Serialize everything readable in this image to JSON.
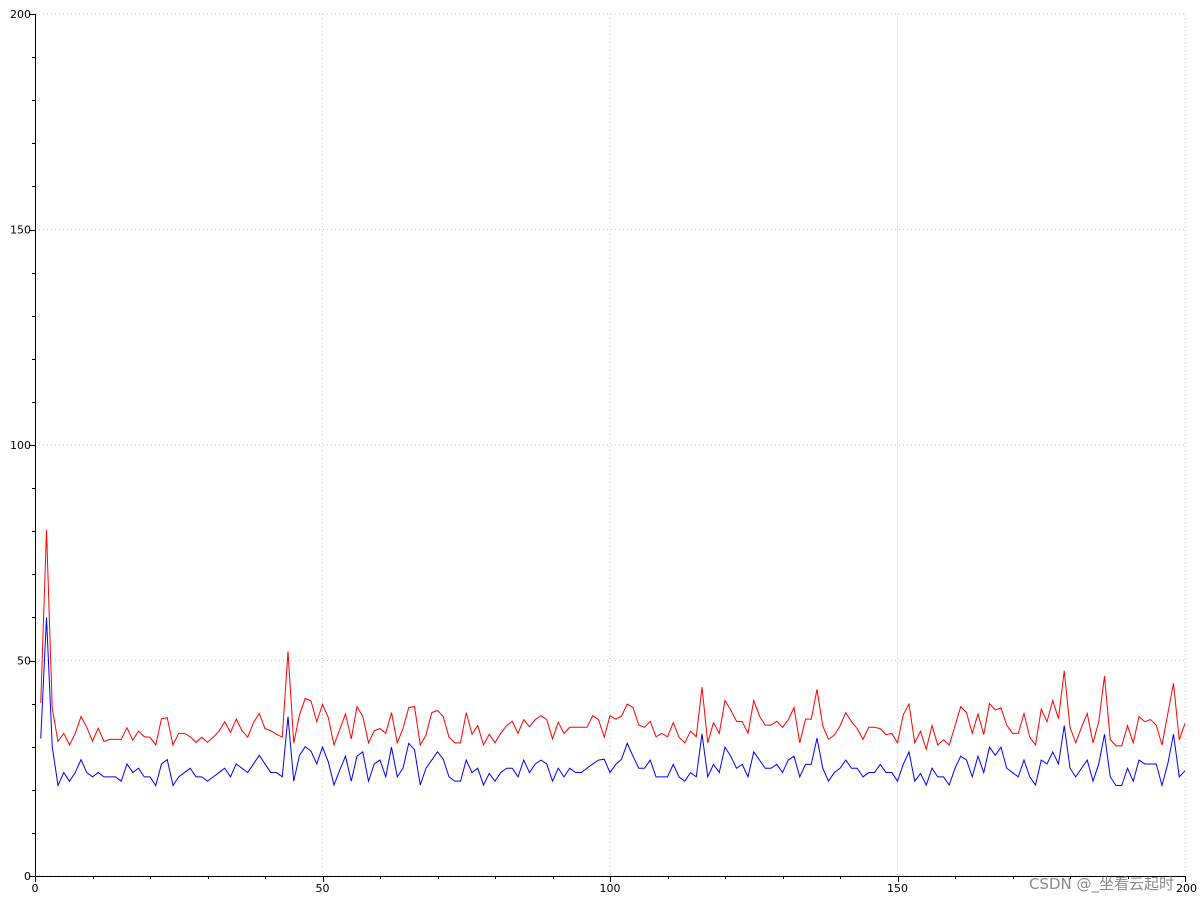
{
  "chart_data": {
    "type": "line",
    "title": "",
    "xlabel": "",
    "ylabel": "",
    "xlim": [
      0,
      200
    ],
    "ylim": [
      0,
      200
    ],
    "x_ticks": [
      "0",
      "50",
      "100",
      "150",
      "200"
    ],
    "y_ticks": [
      "0",
      "50",
      "100",
      "150",
      "200"
    ],
    "grid": true,
    "x": "1..200",
    "series": [
      {
        "color": "#ff0000",
        "values": [
          40.2,
          80.3,
          38.9,
          31.2,
          33.1,
          30.4,
          33.1,
          37,
          34.5,
          31.3,
          34.3,
          31.2,
          31.7,
          31.7,
          31.7,
          34.4,
          31.5,
          33.6,
          32.3,
          32.2,
          30.4,
          36.5,
          36.7,
          30.4,
          33.1,
          33.1,
          32.3,
          31,
          32.2,
          31,
          32.2,
          33.6,
          35.8,
          33.3,
          36.4,
          33.7,
          32.2,
          35.6,
          37.7,
          34.2,
          33.7,
          32.9,
          32.2,
          52.1,
          30.8,
          37.4,
          41.2,
          40.6,
          35.8,
          39.8,
          36.8,
          30.4,
          34,
          37.6,
          31.8,
          39.3,
          37.1,
          30.9,
          33.7,
          34.2,
          33.1,
          37.9,
          30.9,
          34.2,
          39.1,
          39.3,
          30.4,
          32.7,
          37.9,
          38.4,
          37,
          32.2,
          30.9,
          30.9,
          37.9,
          32.9,
          34.9,
          30.4,
          32.9,
          30.9,
          33.1,
          34.9,
          35.9,
          33.1,
          36.3,
          34.6,
          36.3,
          37.2,
          36.3,
          31.8,
          35.7,
          33.1,
          34.5,
          34.5,
          34.5,
          34.5,
          37.2,
          36.3,
          32.2,
          37.2,
          36.4,
          37.1,
          39.9,
          39.1,
          35,
          34.5,
          35.9,
          32.3,
          33.1,
          32.3,
          35.6,
          32.2,
          30.9,
          33.6,
          32.3,
          43.8,
          30.9,
          35.6,
          33.1,
          40.7,
          38.5,
          35.9,
          35.8,
          33.1,
          40.7,
          37.1,
          35,
          35,
          35.9,
          34.5,
          36.2,
          39.1,
          30.9,
          36.4,
          36.4,
          43.3,
          34.8,
          31.7,
          32.7,
          34.8,
          37.9,
          35.8,
          34.2,
          31.7,
          34.5,
          34.5,
          34.2,
          32.8,
          33.1,
          30.9,
          37.4,
          39.9,
          30.9,
          33.6,
          29.4,
          34.9,
          30.4,
          31.6,
          30.4,
          34.8,
          39.3,
          37.9,
          33.1,
          37.6,
          32.8,
          40,
          38.5,
          39,
          35,
          33.1,
          33.1,
          37.7,
          32.2,
          30.4,
          38.7,
          35.8,
          40.7,
          36.5,
          47.6,
          34.5,
          30.9,
          34.5,
          37.7,
          30.9,
          35.8,
          46.4,
          31.7,
          30.2,
          30.2,
          34.9,
          30.9,
          37,
          35.8,
          36.3,
          35,
          30.4,
          37.6,
          44.7,
          31.6,
          35.4
        ]
      },
      {
        "color": "#0000ff",
        "values": [
          31.9,
          60,
          30,
          21,
          24,
          22,
          24,
          27,
          24,
          23,
          24,
          23,
          23,
          23,
          22,
          26,
          24,
          25,
          23,
          23,
          21,
          26,
          27,
          21,
          23,
          24,
          25,
          23,
          23,
          22,
          23,
          24,
          25,
          23,
          26,
          25,
          24,
          26,
          28,
          26,
          24,
          24,
          23,
          37,
          22,
          28,
          30,
          29,
          26,
          29.9,
          26.5,
          21.1,
          24.6,
          27.8,
          22,
          27.8,
          28.8,
          22,
          26,
          26.9,
          23,
          29.9,
          23,
          25,
          30.8,
          29.3,
          21.1,
          25,
          26.9,
          28.8,
          27.1,
          23,
          22,
          22,
          26.9,
          24,
          25,
          21.1,
          23.8,
          22,
          24,
          25,
          25,
          23,
          26.9,
          24,
          26,
          26.9,
          26,
          22,
          25,
          23,
          25,
          24,
          24,
          25,
          26,
          26.9,
          27.1,
          24,
          25.9,
          27.1,
          30.8,
          27.8,
          25,
          25,
          26.9,
          23,
          23,
          23,
          25.9,
          23,
          22,
          24,
          23,
          33,
          23,
          25.9,
          24,
          29.9,
          27.8,
          25,
          25.9,
          23,
          28.8,
          26.9,
          25,
          25,
          25.9,
          24,
          26.9,
          27.8,
          23,
          25.9,
          25.9,
          32,
          25,
          22,
          24,
          25,
          26.9,
          25,
          25,
          23,
          24,
          24,
          25.9,
          24,
          24,
          22,
          25.9,
          28.8,
          22,
          23.8,
          21.1,
          25,
          23,
          23,
          21.1,
          25,
          27.8,
          26.9,
          23,
          27.8,
          24,
          29.9,
          28,
          29.9,
          25,
          24,
          23,
          26.9,
          23,
          21.1,
          26.9,
          26,
          28.8,
          26,
          34.9,
          25,
          23,
          25,
          26.9,
          22,
          26,
          32.9,
          23,
          21,
          21,
          25,
          22,
          26.9,
          26,
          26,
          26,
          21,
          26,
          32.9,
          23,
          24.4
        ]
      }
    ]
  },
  "watermark": "CSDN @_坐看云起时"
}
